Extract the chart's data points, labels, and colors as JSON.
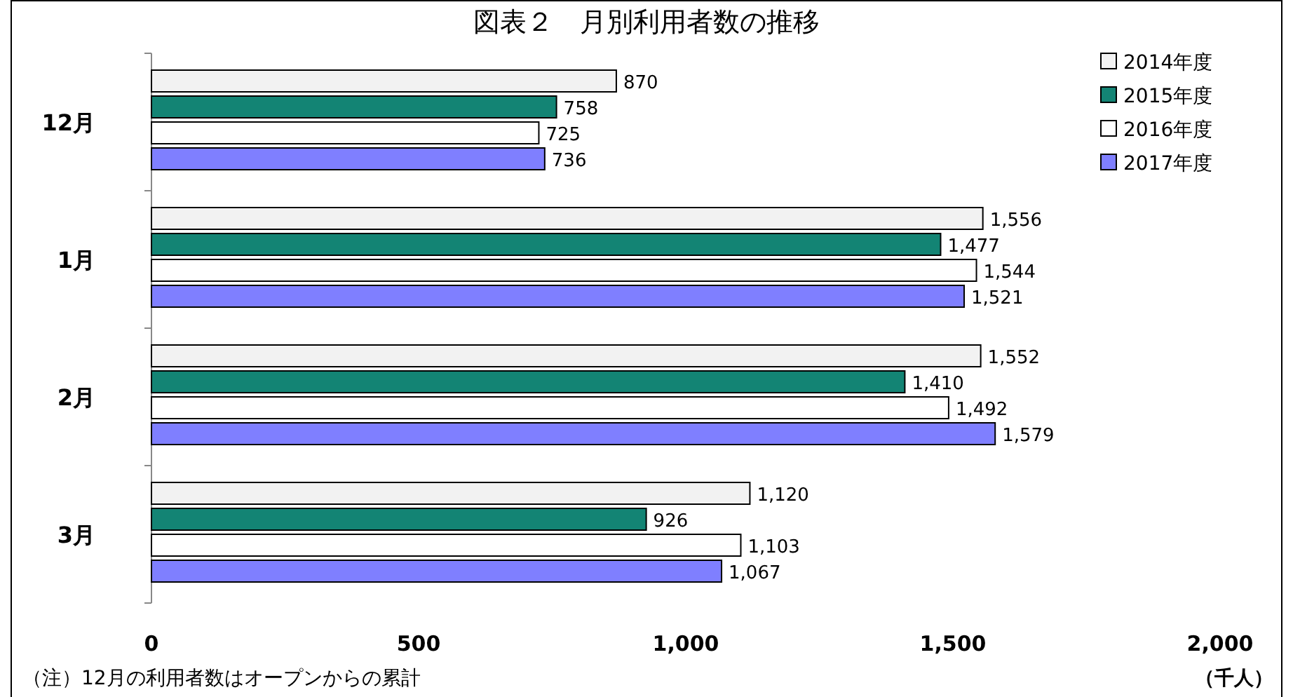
{
  "chart_data": {
    "type": "bar",
    "orientation": "horizontal",
    "title": "図表２　月別利用者数の推移",
    "xlabel": "（千人）",
    "annotations": [
      "（注）12月の利用者数はオープンからの累計"
    ],
    "categories": [
      "12月",
      "1月",
      "2月",
      "3月"
    ],
    "series": [
      {
        "name": "2014年度",
        "color": "#f2f2f2",
        "values": [
          870,
          1556,
          1552,
          1120
        ],
        "value_labels": [
          "870",
          "1,556",
          "1,552",
          "1,120"
        ]
      },
      {
        "name": "2015年度",
        "color": "#138474",
        "values": [
          758,
          1477,
          1410,
          926
        ],
        "value_labels": [
          "758",
          "1,477",
          "1,410",
          "926"
        ]
      },
      {
        "name": "2016年度",
        "color": "#ffffff",
        "values": [
          725,
          1544,
          1492,
          1103
        ],
        "value_labels": [
          "725",
          "1,544",
          "1,492",
          "1,103"
        ]
      },
      {
        "name": "2017年度",
        "color": "#7f7fff",
        "values": [
          736,
          1521,
          1579,
          1067
        ],
        "value_labels": [
          "736",
          "1,521",
          "1,579",
          "1,067"
        ]
      }
    ],
    "xlim": [
      0,
      2000
    ],
    "xticks": [
      0,
      500,
      {
        "value": 1000,
        "label": "1,000"
      },
      {
        "value": 1500,
        "label": "1,500"
      },
      {
        "value": 2000,
        "label": "2,000"
      }
    ],
    "legend": "top right"
  }
}
